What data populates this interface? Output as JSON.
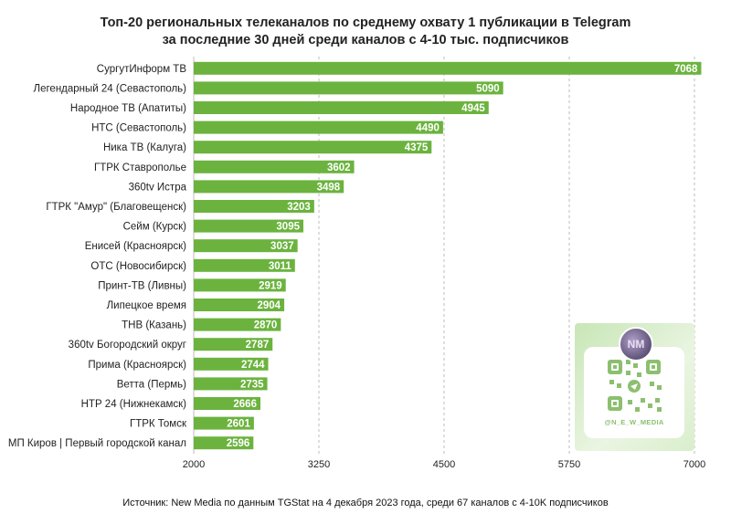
{
  "title_line1": "Топ-20 региональных телеканалов по среднему охвату 1 публикации в Telegram",
  "title_line2": "за последние 30 дней среди каналов с 4-10 тыс. подписчиков",
  "source": "Источник: New Media по данным TGStat на 4 декабря 2023 года, среди 67 каналов с 4-10K подписчиков",
  "qr": {
    "handle": "@N_E_W_MEDIA",
    "avatar_text": "NM"
  },
  "colors": {
    "bar": "#6bb33e",
    "grid": "#bdbdbd",
    "text": "#222222"
  },
  "chart_data": {
    "type": "bar",
    "orientation": "horizontal",
    "title": "Топ-20 региональных телеканалов по среднему охвату 1 публикации в Telegram за последние 30 дней среди каналов с 4-10 тыс. подписчиков",
    "categories": [
      "СургутИнформ ТВ",
      "Легендарный 24 (Севастополь)",
      "Народное ТВ (Апатиты)",
      "НТС (Севастополь)",
      "Ника ТВ (Калуга)",
      "ГТРК Ставрополье",
      "360tv Истра",
      "ГТРК \"Амур\" (Благовещенск)",
      "Сейм (Курск)",
      "Енисей (Красноярск)",
      "ОТС (Новосибирск)",
      "Принт-ТВ (Ливны)",
      "Липецкое время",
      "ТНВ (Казань)",
      "360tv Богородский округ",
      "Прима (Красноярск)",
      "Ветта (Пермь)",
      "НТР 24 (Нижнекамск)",
      "ГТРК Томск",
      "МП Киров | Первый городской канал"
    ],
    "values": [
      7068,
      5090,
      4945,
      4490,
      4375,
      3602,
      3498,
      3203,
      3095,
      3037,
      3011,
      2919,
      2904,
      2870,
      2787,
      2744,
      2735,
      2666,
      2601,
      2596
    ],
    "xlim": [
      2000,
      7000
    ],
    "xticks": [
      "2000",
      "3250",
      "4500",
      "5750",
      "7000"
    ],
    "grid": true,
    "data_labels": true
  }
}
